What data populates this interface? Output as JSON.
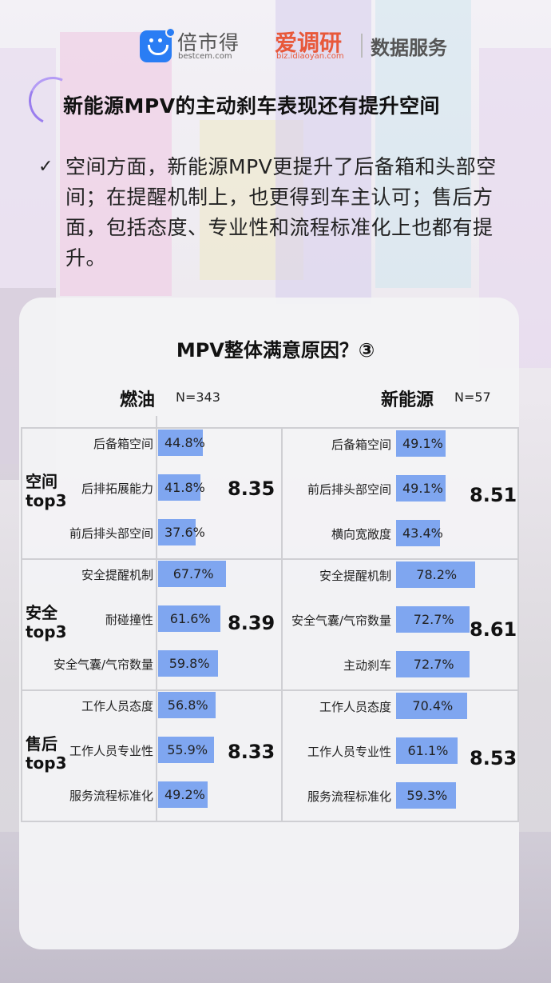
{
  "header": {
    "brand1": "倍市得",
    "brand1_sub": "bestcem.com",
    "brand2": "爱调研",
    "brand2_sub": "biz.idiaoyan.com",
    "brand3": "数据服务"
  },
  "title": "新能源MPV的主动刹车表现还有提升空间",
  "body": {
    "check": "✓",
    "text": "空间方面，新能源MPV更提升了后备箱和头部空间；在提醒机制上，也更得到车主认可；售后方面，包括态度、专业性和流程标准化上也都有提升。"
  },
  "chart_data": {
    "type": "bar",
    "title": "MPV整体满意原因？③",
    "groups": [
      {
        "name": "燃油",
        "n_label": "N=343"
      },
      {
        "name": "新能源",
        "n_label": "N=57"
      }
    ],
    "categories": [
      {
        "name_line1": "空间",
        "name_line2": "top3",
        "scores": [
          "8.35",
          "8.51"
        ]
      },
      {
        "name_line1": "安全",
        "name_line2": "top3",
        "scores": [
          "8.39",
          "8.61"
        ]
      },
      {
        "name_line1": "售后",
        "name_line2": "top3",
        "scores": [
          "8.33",
          "8.53"
        ]
      }
    ],
    "series": [
      {
        "name": "燃油",
        "items": [
          {
            "label": "后备箱空间",
            "value": 44.8,
            "text": "44.8%"
          },
          {
            "label": "后排拓展能力",
            "value": 41.8,
            "text": "41.8%"
          },
          {
            "label": "前后排头部空间",
            "value": 37.6,
            "text": "37.6%"
          },
          {
            "label": "安全提醒机制",
            "value": 67.7,
            "text": "67.7%"
          },
          {
            "label": "耐碰撞性",
            "value": 61.6,
            "text": "61.6%"
          },
          {
            "label": "安全气囊/气帘数量",
            "value": 59.8,
            "text": "59.8%"
          },
          {
            "label": "工作人员态度",
            "value": 56.8,
            "text": "56.8%"
          },
          {
            "label": "工作人员专业性",
            "value": 55.9,
            "text": "55.9%"
          },
          {
            "label": "服务流程标准化",
            "value": 49.2,
            "text": "49.2%"
          }
        ]
      },
      {
        "name": "新能源",
        "items": [
          {
            "label": "后备箱空间",
            "value": 49.1,
            "text": "49.1%"
          },
          {
            "label": "前后排头部空间",
            "value": 49.1,
            "text": "49.1%"
          },
          {
            "label": "横向宽敞度",
            "value": 43.4,
            "text": "43.4%"
          },
          {
            "label": "安全提醒机制",
            "value": 78.2,
            "text": "78.2%"
          },
          {
            "label": "安全气囊/气帘数量",
            "value": 72.7,
            "text": "72.7%"
          },
          {
            "label": "主动刹车",
            "value": 72.7,
            "text": "72.7%"
          },
          {
            "label": "工作人员态度",
            "value": 70.4,
            "text": "70.4%"
          },
          {
            "label": "工作人员专业性",
            "value": 61.1,
            "text": "61.1%"
          },
          {
            "label": "服务流程标准化",
            "value": 59.3,
            "text": "59.3%"
          }
        ]
      }
    ],
    "colors": {
      "bar": "#7fa6f0"
    }
  }
}
